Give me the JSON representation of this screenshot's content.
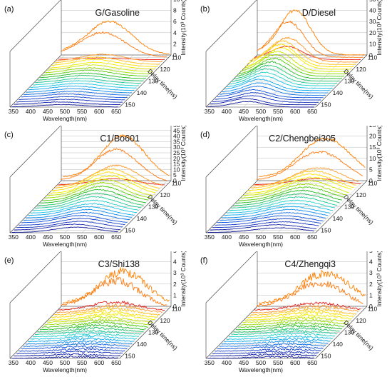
{
  "chart_data": [
    {
      "type": "line",
      "panel_letter": "(a)",
      "title": "G/Gasoline",
      "xlabel": "Wavelength(nm)",
      "x_ticks": [
        "350",
        "400",
        "450",
        "500",
        "550",
        "600",
        "650"
      ],
      "xlim": [
        340,
        660
      ],
      "zlabel": "Intensity(10³ Counts)",
      "z_ticks": [
        "0",
        "2",
        "4",
        "6",
        "8",
        "10"
      ],
      "zlim": [
        0,
        10
      ],
      "ylabel": "Delay time(ns)",
      "y_ticks": [
        "110",
        "120",
        "130",
        "140",
        "150"
      ],
      "ylim": [
        108,
        152
      ],
      "delays": [
        108,
        110,
        112,
        114,
        116,
        118,
        120,
        122,
        124,
        126,
        128,
        130,
        132,
        134,
        136,
        138,
        140,
        142,
        144,
        146,
        148,
        150,
        152
      ],
      "peak_wavelength": 480,
      "peak_width": 65,
      "peak_intensities": [
        6.0,
        4.5,
        0.3,
        1.4,
        1.3,
        1.3,
        1.2,
        1.2,
        1.1,
        1.1,
        1.0,
        1.0,
        0.9,
        0.9,
        0.85,
        0.8,
        0.75,
        0.7,
        0.65,
        0.6,
        0.55,
        0.5,
        0.45
      ],
      "noise": 0.3
    },
    {
      "type": "line",
      "panel_letter": "(b)",
      "title": "D/Diesel",
      "xlabel": "Wavelength(nm)",
      "x_ticks": [
        "350",
        "400",
        "450",
        "500",
        "550",
        "600",
        "650"
      ],
      "xlim": [
        340,
        660
      ],
      "zlabel": "Intensity(10³ Counts)",
      "z_ticks": [
        "0",
        "10",
        "20",
        "30",
        "40",
        "50"
      ],
      "zlim": [
        0,
        50
      ],
      "ylabel": "Delay time(ns)",
      "y_ticks": [
        "110",
        "120",
        "130",
        "140",
        "150"
      ],
      "ylim": [
        108,
        152
      ],
      "delays": [
        108,
        110,
        112,
        114,
        116,
        118,
        120,
        122,
        124,
        126,
        128,
        130,
        132,
        134,
        136,
        138,
        140,
        142,
        144,
        146,
        148,
        150,
        152
      ],
      "peak_wavelength": 450,
      "peak_width": 45,
      "peak_intensities": [
        40,
        32,
        12,
        22,
        21,
        20,
        19,
        18,
        17,
        16,
        15,
        14,
        13,
        12,
        11,
        10,
        9,
        8,
        7,
        6.5,
        6,
        5.5,
        5
      ],
      "noise": 0.3
    },
    {
      "type": "line",
      "panel_letter": "(c)",
      "title": "C1/Bo601",
      "xlabel": "Wavelength(nm)",
      "x_ticks": [
        "350",
        "400",
        "450",
        "500",
        "550",
        "600",
        "650"
      ],
      "xlim": [
        340,
        660
      ],
      "zlabel": "Intensity(10³ Counts)",
      "z_ticks": [
        "0",
        "5",
        "10",
        "15",
        "20",
        "25",
        "30",
        "35",
        "40",
        "45",
        "50"
      ],
      "zlim": [
        0,
        50
      ],
      "ylabel": "Delay time(ns)",
      "y_ticks": [
        "110",
        "120",
        "130",
        "140",
        "150"
      ],
      "ylim": [
        108,
        152
      ],
      "delays": [
        108,
        110,
        112,
        114,
        116,
        118,
        120,
        122,
        124,
        126,
        128,
        130,
        132,
        134,
        136,
        138,
        140,
        142,
        144,
        146,
        148,
        150,
        152
      ],
      "peak_wavelength": 520,
      "peak_width": 65,
      "peak_intensities": [
        40,
        30,
        6,
        20,
        19,
        18,
        17,
        16,
        15,
        14,
        13,
        12,
        11,
        10,
        9,
        8.5,
        8,
        7.5,
        7,
        6.5,
        6,
        5.5,
        5
      ],
      "noise": 0.3
    },
    {
      "type": "line",
      "panel_letter": "(d)",
      "title": "C2/Chengbei305",
      "xlabel": "Wavelength(nm)",
      "x_ticks": [
        "350",
        "400",
        "450",
        "500",
        "550",
        "600",
        "650"
      ],
      "xlim": [
        340,
        660
      ],
      "zlabel": "Intensity(10³ Counts)",
      "z_ticks": [
        "0",
        "5",
        "10",
        "15",
        "20",
        "25"
      ],
      "zlim": [
        0,
        25
      ],
      "ylabel": "Delay time(ns)",
      "y_ticks": [
        "110",
        "120",
        "130",
        "140",
        "150"
      ],
      "ylim": [
        108,
        152
      ],
      "delays": [
        108,
        110,
        112,
        114,
        116,
        118,
        120,
        122,
        124,
        126,
        128,
        130,
        132,
        134,
        136,
        138,
        140,
        142,
        144,
        146,
        148,
        150,
        152
      ],
      "peak_wavelength": 540,
      "peak_width": 75,
      "peak_intensities": [
        19,
        14,
        3,
        9,
        8.6,
        8.2,
        7.8,
        7.4,
        7.0,
        6.6,
        6.2,
        5.8,
        5.4,
        5.0,
        4.6,
        4.3,
        4.0,
        3.7,
        3.4,
        3.1,
        2.8,
        2.5,
        2.2
      ],
      "noise": 0.3
    },
    {
      "type": "line",
      "panel_letter": "(e)",
      "title": "C3/Shi138",
      "xlabel": "Wavelength(nm)",
      "x_ticks": [
        "350",
        "400",
        "450",
        "500",
        "550",
        "600",
        "650"
      ],
      "xlim": [
        340,
        660
      ],
      "zlabel": "Intensity(10³ Counts)",
      "z_ticks": [
        "0",
        "1",
        "2",
        "3",
        "4",
        "5"
      ],
      "zlim": [
        0,
        5
      ],
      "ylabel": "Delay time(ns)",
      "y_ticks": [
        "110",
        "120",
        "130",
        "140",
        "150"
      ],
      "ylim": [
        108,
        152
      ],
      "delays": [
        108,
        110,
        112,
        114,
        116,
        118,
        120,
        122,
        124,
        126,
        128,
        130,
        132,
        134,
        136,
        138,
        140,
        142,
        144,
        146,
        148,
        150,
        152
      ],
      "peak_wavelength": 520,
      "peak_width": 70,
      "peak_intensities": [
        3.1,
        2.5,
        0.8,
        0.7,
        0.65,
        0.6,
        0.55,
        0.5,
        0.47,
        0.44,
        0.41,
        0.38,
        0.35,
        0.32,
        0.3,
        0.28,
        0.26,
        0.24,
        0.22,
        0.2,
        0.18,
        0.16,
        0.15
      ],
      "noise": 0.9
    },
    {
      "type": "line",
      "panel_letter": "(f)",
      "title": "C4/Zhengqi3",
      "xlabel": "Wavelength(nm)",
      "x_ticks": [
        "350",
        "400",
        "450",
        "500",
        "550",
        "600",
        "650"
      ],
      "xlim": [
        340,
        660
      ],
      "zlabel": "Intensity(10³ Counts)",
      "z_ticks": [
        "0",
        "1",
        "2",
        "3",
        "4",
        "5"
      ],
      "zlim": [
        0,
        5
      ],
      "ylabel": "Delay time(ns)",
      "y_ticks": [
        "110",
        "120",
        "130",
        "140",
        "150"
      ],
      "ylim": [
        108,
        152
      ],
      "delays": [
        108,
        110,
        112,
        114,
        116,
        118,
        120,
        122,
        124,
        126,
        128,
        130,
        132,
        134,
        136,
        138,
        140,
        142,
        144,
        146,
        148,
        150,
        152
      ],
      "peak_wavelength": 540,
      "peak_width": 75,
      "peak_intensities": [
        3.0,
        2.3,
        0.7,
        0.65,
        0.6,
        0.55,
        0.5,
        0.47,
        0.44,
        0.41,
        0.38,
        0.35,
        0.32,
        0.3,
        0.28,
        0.26,
        0.24,
        0.22,
        0.2,
        0.18,
        0.16,
        0.15,
        0.14
      ],
      "noise": 0.9
    }
  ],
  "series_colors": [
    "#ff8000",
    "#ff7a10",
    "#e8231b",
    "#ff9a2e",
    "#ffc21a",
    "#ffe000",
    "#f2ee00",
    "#cce800",
    "#99dd00",
    "#55cc11",
    "#22bb22",
    "#22c266",
    "#22cc99",
    "#20d0c8",
    "#18c2e6",
    "#10a8ee",
    "#108cee",
    "#1070e8",
    "#1254dd",
    "#1440cc",
    "#1530bb",
    "#1422aa",
    "#101898"
  ]
}
